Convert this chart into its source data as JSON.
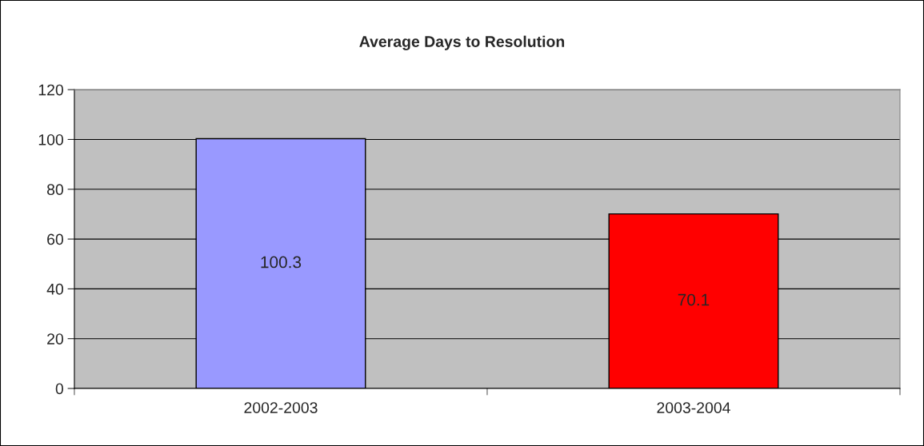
{
  "chart_data": {
    "type": "bar",
    "title": "Average Days to Resolution",
    "categories": [
      "2002-2003",
      "2003-2004"
    ],
    "values": [
      100.3,
      70.1
    ],
    "colors": [
      "#9999ff",
      "#ff0000"
    ],
    "ylim": [
      0,
      120
    ],
    "yticks": [
      0,
      20,
      40,
      60,
      80,
      100,
      120
    ],
    "grid": "y",
    "data_labels": true,
    "legend": false
  }
}
